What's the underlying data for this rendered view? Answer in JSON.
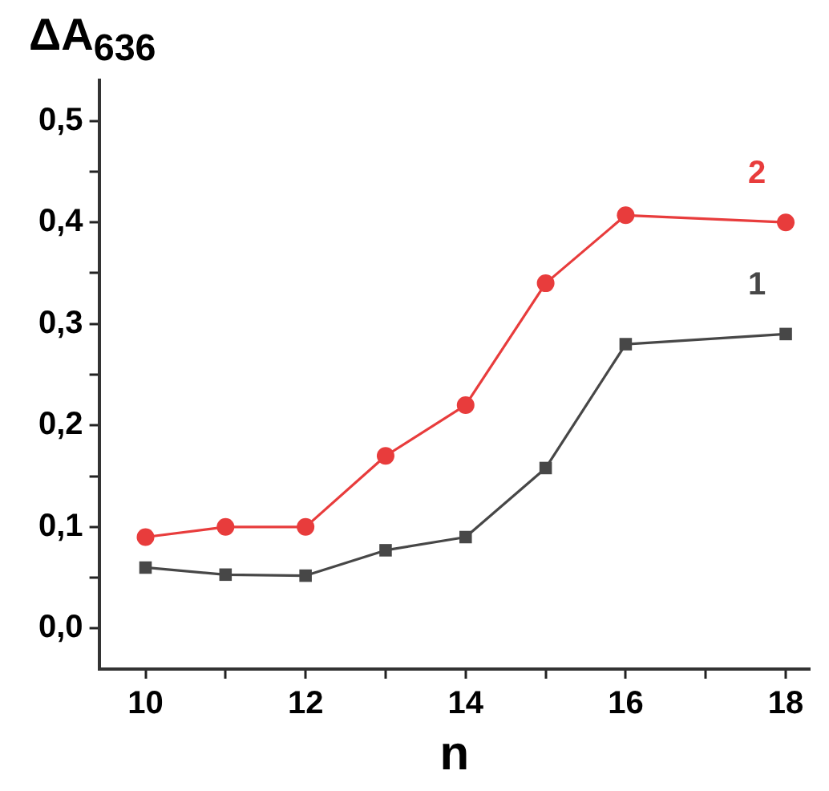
{
  "chart_data": {
    "type": "line",
    "xlabel": "n",
    "ylabel": "ΔA$_{636}$",
    "series": [
      {
        "name": "1",
        "color": "#474747",
        "marker": "square",
        "x": [
          10,
          11,
          12,
          13,
          14,
          15,
          16,
          18
        ],
        "values": [
          0.06,
          0.053,
          0.052,
          0.077,
          0.09,
          0.158,
          0.28,
          0.29
        ]
      },
      {
        "name": "2",
        "color": "#e83c3c",
        "marker": "circle",
        "x": [
          10,
          11,
          12,
          13,
          14,
          15,
          16,
          18
        ],
        "values": [
          0.09,
          0.1,
          0.1,
          0.17,
          0.22,
          0.34,
          0.407,
          0.4
        ]
      }
    ],
    "xlim": [
      9.42,
      18.3
    ],
    "ylim": [
      -0.04,
      0.54
    ],
    "xticks": [
      10,
      {
        "value": 11,
        "label": null
      },
      12,
      {
        "value": 13,
        "label": null
      },
      14,
      {
        "value": 15,
        "label": null
      },
      16,
      {
        "value": 17,
        "label": null
      },
      18
    ],
    "yticks": [
      {
        "value": 0,
        "label": "0,0"
      },
      {
        "value": 0.05,
        "label": null
      },
      {
        "value": 0.1,
        "label": "0,1"
      },
      {
        "value": 0.15,
        "label": null
      },
      {
        "value": 0.2,
        "label": "0,2"
      },
      {
        "value": 0.25,
        "label": null
      },
      {
        "value": 0.3,
        "label": "0,3"
      },
      {
        "value": 0.35,
        "label": null
      },
      {
        "value": 0.4,
        "label": "0,4"
      },
      {
        "value": 0.45,
        "label": null
      },
      {
        "value": 0.5,
        "label": "0,5"
      }
    ],
    "grid": false,
    "legend": false
  }
}
